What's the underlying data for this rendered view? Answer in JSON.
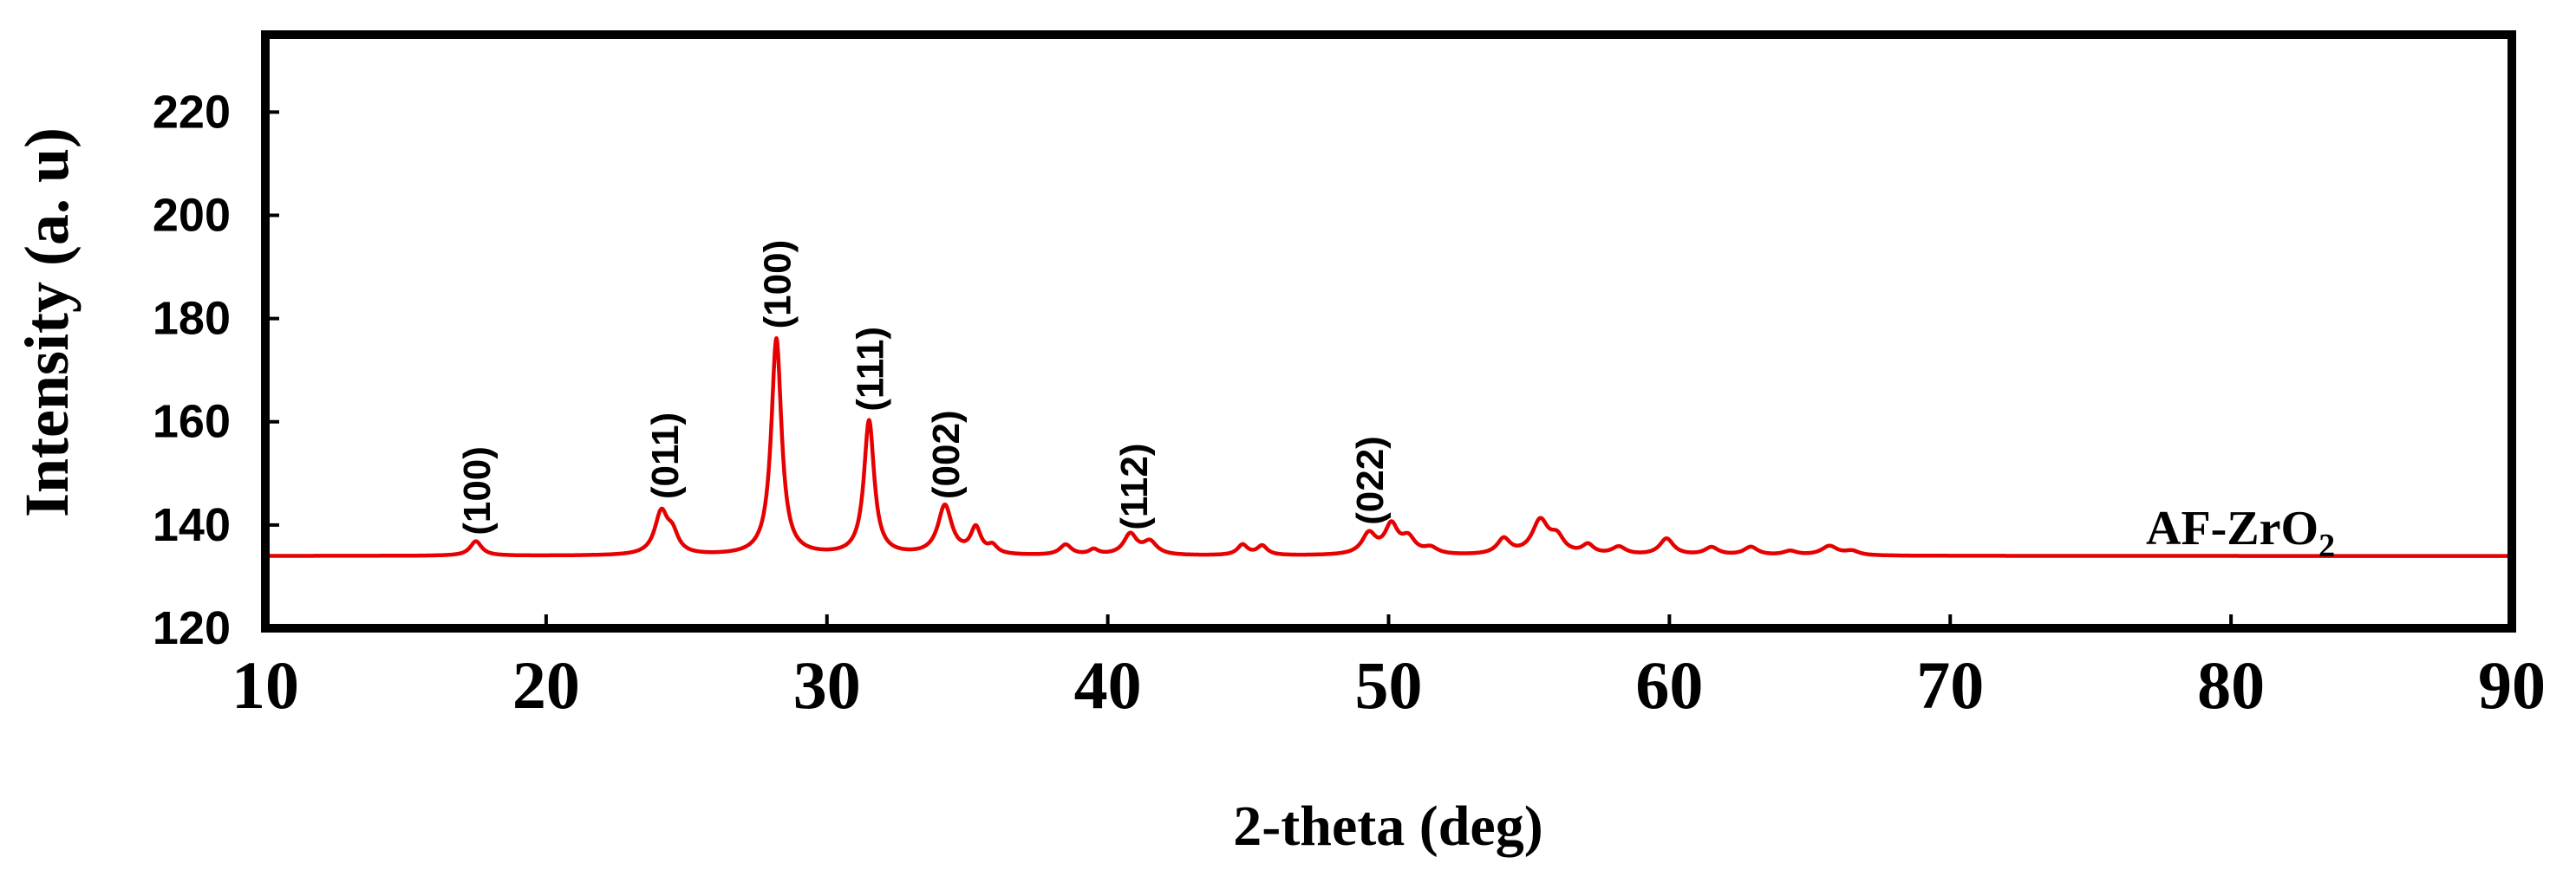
{
  "chart_data": {
    "type": "line",
    "title": "",
    "xlabel": "2-theta (deg)",
    "ylabel": "Intensity (a. u)",
    "xlim": [
      10,
      90
    ],
    "ylim": [
      120,
      235
    ],
    "x_ticks": [
      10,
      20,
      30,
      40,
      50,
      60,
      70,
      80,
      90
    ],
    "y_ticks": [
      120,
      140,
      160,
      180,
      200,
      220
    ],
    "grid": false,
    "series_color": "#e60000",
    "series": [
      {
        "name": "AF-ZrO2",
        "label_main": "AF-ZrO",
        "label_sub": "2",
        "baseline": 134,
        "peaks": [
          {
            "x": 17.5,
            "height": 2.8,
            "width": 0.25
          },
          {
            "x": 24.1,
            "height": 8.0,
            "width": 0.28
          },
          {
            "x": 24.5,
            "height": 3.5,
            "width": 0.25
          },
          {
            "x": 28.2,
            "height": 42.0,
            "width": 0.22
          },
          {
            "x": 31.5,
            "height": 26.0,
            "width": 0.22
          },
          {
            "x": 34.2,
            "height": 9.5,
            "width": 0.3
          },
          {
            "x": 35.3,
            "height": 5.0,
            "width": 0.22
          },
          {
            "x": 35.9,
            "height": 1.5,
            "width": 0.2
          },
          {
            "x": 38.5,
            "height": 2.0,
            "width": 0.25
          },
          {
            "x": 39.5,
            "height": 1.0,
            "width": 0.2
          },
          {
            "x": 40.8,
            "height": 4.0,
            "width": 0.28
          },
          {
            "x": 41.5,
            "height": 2.5,
            "width": 0.3
          },
          {
            "x": 44.8,
            "height": 2.0,
            "width": 0.22
          },
          {
            "x": 45.5,
            "height": 1.8,
            "width": 0.22
          },
          {
            "x": 49.3,
            "height": 4.0,
            "width": 0.3
          },
          {
            "x": 50.1,
            "height": 5.5,
            "width": 0.28
          },
          {
            "x": 50.7,
            "height": 3.0,
            "width": 0.3
          },
          {
            "x": 51.5,
            "height": 1.2,
            "width": 0.3
          },
          {
            "x": 54.1,
            "height": 3.0,
            "width": 0.28
          },
          {
            "x": 55.4,
            "height": 6.5,
            "width": 0.35
          },
          {
            "x": 56.0,
            "height": 3.0,
            "width": 0.3
          },
          {
            "x": 57.1,
            "height": 1.8,
            "width": 0.25
          },
          {
            "x": 58.2,
            "height": 1.5,
            "width": 0.3
          },
          {
            "x": 59.9,
            "height": 3.2,
            "width": 0.3
          },
          {
            "x": 61.5,
            "height": 1.5,
            "width": 0.3
          },
          {
            "x": 62.9,
            "height": 1.6,
            "width": 0.3
          },
          {
            "x": 64.3,
            "height": 0.8,
            "width": 0.3
          },
          {
            "x": 65.7,
            "height": 1.8,
            "width": 0.35
          },
          {
            "x": 66.5,
            "height": 0.8,
            "width": 0.3
          }
        ]
      }
    ],
    "annotations": [
      {
        "text": "(100)",
        "x": 17.5,
        "y": 138
      },
      {
        "text": "(011)",
        "x": 24.2,
        "y": 145
      },
      {
        "text": "(100)",
        "x": 28.2,
        "y": 178
      },
      {
        "text": "(111)",
        "x": 31.5,
        "y": 162
      },
      {
        "text": "(002)",
        "x": 34.2,
        "y": 145
      },
      {
        "text": "(112)",
        "x": 40.9,
        "y": 139
      },
      {
        "text": "(022)",
        "x": 49.3,
        "y": 140
      }
    ]
  }
}
